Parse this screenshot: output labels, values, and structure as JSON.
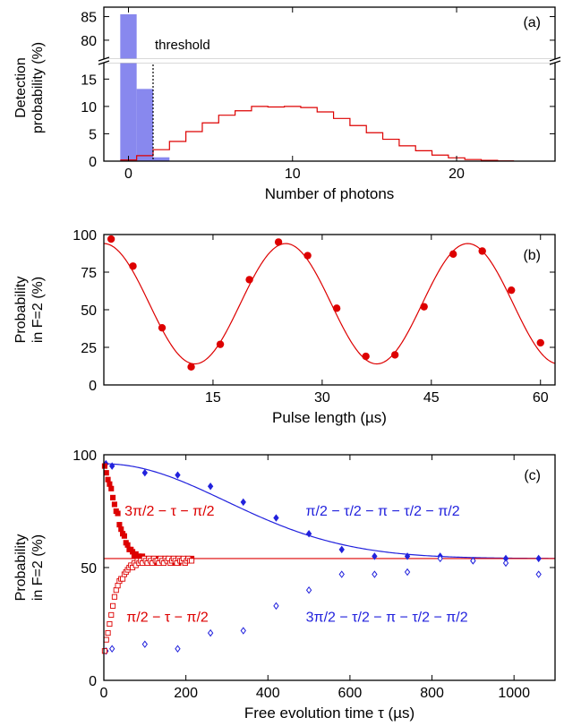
{
  "colors": {
    "blue": "#2222dd",
    "red": "#dd0000",
    "hist_blue": "#8888ee"
  },
  "chart_data": [
    {
      "type": "bar",
      "label": "(a)",
      "xlabel": "Number of photons",
      "ylabel": [
        "Detection",
        "probability (%)"
      ],
      "xlim": [
        -1.5,
        26
      ],
      "ylim_lower": [
        0,
        18
      ],
      "ylim_upper": [
        76,
        87
      ],
      "axis_break": true,
      "xticks": [
        0,
        10,
        20
      ],
      "yticks_lower": [
        0,
        5,
        10,
        15
      ],
      "yticks_upper": [
        80,
        85
      ],
      "threshold_label": "threshold",
      "threshold_x": 1.5,
      "series": [
        {
          "style": "filled-bars",
          "x": [
            0,
            1,
            2
          ],
          "values": [
            85.5,
            13.2,
            0.7
          ]
        },
        {
          "style": "step-outline",
          "x": [
            0,
            1,
            2,
            3,
            4,
            5,
            6,
            7,
            8,
            9,
            10,
            11,
            12,
            13,
            14,
            15,
            16,
            17,
            18,
            19,
            20,
            21,
            22,
            23
          ],
          "values": [
            0.2,
            1.0,
            2.1,
            3.6,
            5.4,
            7.0,
            8.4,
            9.2,
            10.0,
            9.9,
            10.0,
            9.8,
            9.0,
            7.8,
            6.5,
            5.2,
            4.0,
            2.8,
            1.9,
            1.1,
            0.6,
            0.3,
            0.15,
            0.05
          ]
        }
      ]
    },
    {
      "type": "scatter",
      "label": "(b)",
      "xlabel": "Pulse length (µs)",
      "ylabel": [
        "Probability",
        "in F=2 (%)"
      ],
      "xlim": [
        0,
        62
      ],
      "ylim": [
        0,
        100
      ],
      "xticks": [
        15,
        30,
        45,
        60
      ],
      "yticks": [
        0,
        25,
        50,
        75,
        100
      ],
      "points": {
        "x": [
          1,
          4,
          8,
          12,
          16,
          20,
          24,
          28,
          32,
          36,
          40,
          44,
          48,
          52,
          56,
          60
        ],
        "y": [
          97,
          79,
          38,
          12,
          27,
          70,
          95,
          86,
          51,
          19,
          20,
          52,
          87,
          89,
          63,
          28
        ]
      },
      "fit": {
        "offset": 54,
        "amplitude": 40,
        "period": 25,
        "decay": 0.0
      }
    },
    {
      "type": "scatter",
      "label": "(c)",
      "xlabel": "Free evolution time τ (µs)",
      "ylabel": [
        "Probability",
        "in F=2 (%)"
      ],
      "xlim": [
        0,
        1100
      ],
      "ylim": [
        0,
        100
      ],
      "xticks": [
        0,
        200,
        400,
        600,
        800,
        1000
      ],
      "yticks": [
        0,
        50,
        100
      ],
      "annotations": [
        {
          "text": "3π/2 − τ − π/2",
          "color": "red",
          "x": 160,
          "y": 75
        },
        {
          "text": "π/2 − τ − π/2",
          "color": "red",
          "x": 155,
          "y": 28
        },
        {
          "text": "π/2 − τ/2 − π − τ/2 − π/2",
          "color": "blue",
          "x": 680,
          "y": 75
        },
        {
          "text": "3π/2 − τ/2 − π − τ/2 − π/2",
          "color": "blue",
          "x": 690,
          "y": 28
        }
      ],
      "series": [
        {
          "style": "filled-diamond",
          "color": "blue",
          "x": [
            5,
            20,
            100,
            180,
            260,
            340,
            420,
            500,
            580,
            660,
            740,
            820,
            900,
            980,
            1060
          ],
          "y": [
            96,
            95,
            92,
            91,
            86,
            79,
            72,
            65,
            58,
            55,
            55,
            55,
            53,
            54,
            54
          ]
        },
        {
          "style": "open-diamond",
          "color": "blue",
          "x": [
            5,
            20,
            100,
            180,
            260,
            340,
            420,
            500,
            580,
            660,
            740,
            820,
            900,
            980,
            1060
          ],
          "y": [
            13,
            14,
            16,
            14,
            21,
            22,
            33,
            40,
            47,
            47,
            48,
            54,
            53,
            52,
            47
          ]
        },
        {
          "style": "filled-square",
          "color": "red",
          "x": [
            2,
            6,
            10,
            14,
            18,
            22,
            26,
            30,
            34,
            38,
            42,
            46,
            50,
            54,
            58,
            62,
            66,
            70,
            74,
            78,
            82,
            86,
            90,
            94,
            98,
            102,
            106,
            110,
            114,
            118,
            122,
            126,
            130,
            134,
            138,
            142,
            146,
            150,
            154,
            158,
            162,
            166,
            170,
            174,
            178,
            182,
            186,
            190,
            194,
            198,
            202,
            206,
            210,
            214
          ],
          "y": [
            95,
            92,
            89,
            87,
            85,
            81,
            78,
            75,
            74,
            69,
            67,
            65,
            64,
            61,
            60,
            58,
            58,
            57,
            55,
            56,
            55,
            55,
            53,
            55,
            52,
            54,
            53,
            52,
            54,
            52,
            53,
            54,
            52,
            53,
            54,
            53,
            52,
            54,
            53,
            53,
            54,
            52,
            53,
            54,
            53,
            52,
            54,
            53,
            53,
            52,
            54,
            53,
            53,
            54
          ]
        },
        {
          "style": "open-square",
          "color": "red",
          "x": [
            2,
            6,
            10,
            14,
            18,
            22,
            26,
            30,
            34,
            38,
            42,
            46,
            50,
            54,
            58,
            62,
            66,
            70,
            74,
            78,
            82,
            86,
            90,
            94,
            98,
            102,
            106,
            110,
            114,
            118,
            122,
            126,
            130,
            134,
            138,
            142,
            146,
            150,
            154,
            158,
            162,
            166,
            170,
            174,
            178,
            182,
            186,
            190,
            194,
            198,
            202,
            206,
            210,
            214
          ],
          "y": [
            13,
            18,
            21,
            25,
            29,
            33,
            37,
            40,
            42,
            44,
            45,
            45,
            47,
            48,
            49,
            50,
            51,
            50,
            52,
            51,
            53,
            52,
            53,
            52,
            54,
            53,
            52,
            54,
            53,
            52,
            54,
            53,
            53,
            52,
            54,
            53,
            52,
            54,
            53,
            54,
            52,
            53,
            54,
            53,
            52,
            54,
            53,
            53,
            54,
            52,
            53,
            54,
            53,
            53
          ]
        }
      ],
      "fits": [
        {
          "color": "blue",
          "form": "gaussian-decay",
          "start": 96,
          "end": 54,
          "tau": 420
        },
        {
          "color": "red",
          "form": "flat",
          "level": 54
        }
      ]
    }
  ]
}
